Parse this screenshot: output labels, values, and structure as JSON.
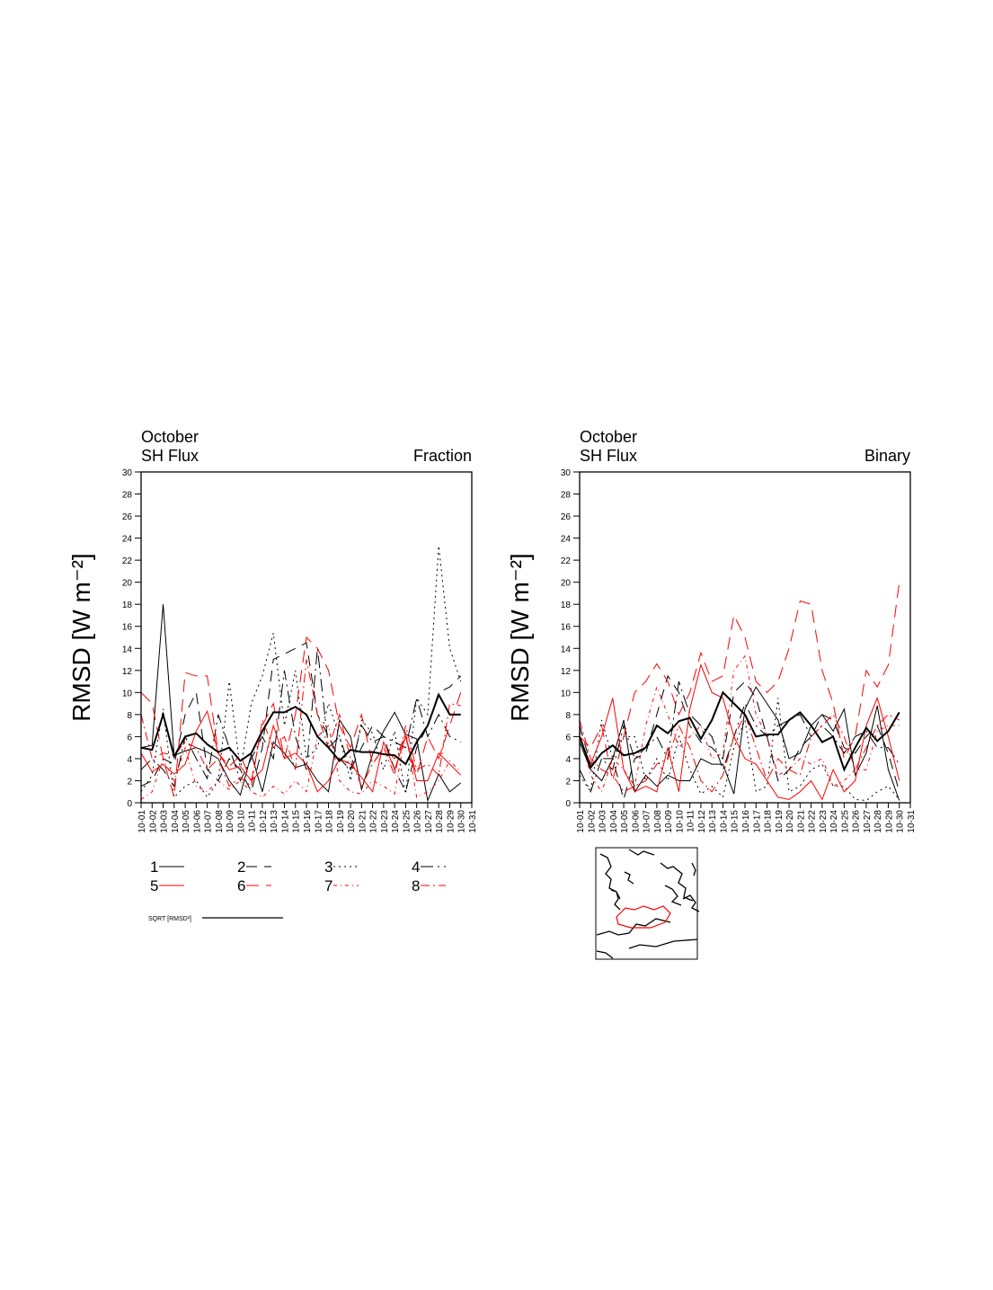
{
  "chart_data": [
    {
      "type": "line",
      "title": "October",
      "subtitle": "SH Flux",
      "right_label": "Fraction",
      "y_label": "RMSD [W m⁻²]",
      "categories": [
        "10-01",
        "10-02",
        "10-03",
        "10-04",
        "10-05",
        "10-06",
        "10-07",
        "10-08",
        "10-09",
        "10-10",
        "10-11",
        "10-12",
        "10-13",
        "10-14",
        "10-15",
        "10-16",
        "10-17",
        "10-18",
        "10-19",
        "10-20",
        "10-21",
        "10-22",
        "10-23",
        "10-24",
        "10-25",
        "10-26",
        "10-27",
        "10-28",
        "10-29",
        "10-30",
        "10-31"
      ],
      "ylim": [
        0,
        30
      ],
      "yticks": [
        0,
        2,
        4,
        6,
        8,
        10,
        12,
        14,
        16,
        18,
        20,
        22,
        24,
        26,
        28,
        30
      ],
      "series": [
        {
          "name": "1",
          "color": "#000000",
          "dash": "none",
          "line_width": 1,
          "values": [
            5,
            5.2,
            18,
            4.3,
            4.7,
            5,
            4.6,
            4,
            2,
            0.7,
            4.4,
            1,
            5.5,
            4.5,
            3.2,
            3.5,
            2,
            1,
            7.5,
            6,
            1.2,
            4.4,
            6.5,
            8.2,
            6.2,
            5.8,
            0.2,
            2.6,
            1,
            1.8,
            null
          ]
        },
        {
          "name": "2",
          "color": "#000000",
          "dash": "12 8",
          "line_width": 1,
          "values": [
            1.5,
            2,
            4,
            3.5,
            8,
            10,
            3,
            2,
            4,
            3,
            1,
            5,
            13,
            13.5,
            14,
            14.5,
            8,
            6,
            4,
            3,
            5,
            7,
            6,
            3,
            1,
            5,
            7,
            10,
            10.5,
            11.5,
            null
          ]
        },
        {
          "name": "3",
          "color": "#000000",
          "dash": "2 4",
          "line_width": 1,
          "values": [
            1,
            2.5,
            8.5,
            0.5,
            1.5,
            2,
            0.5,
            2,
            11,
            3,
            9,
            11.5,
            15.4,
            7,
            12,
            4,
            5,
            9,
            6,
            2,
            7.5,
            6.3,
            3,
            6.5,
            0.8,
            9.5,
            8,
            23.3,
            14,
            11,
            null
          ]
        },
        {
          "name": "4",
          "color": "#000000",
          "dash": "14 5 2 5",
          "line_width": 1,
          "values": [
            3,
            4,
            3,
            1.5,
            6,
            4,
            2.2,
            8,
            5,
            2,
            4,
            6,
            4,
            12,
            6,
            3,
            14,
            5,
            6,
            3,
            7,
            5.5,
            6,
            5.5,
            5,
            9.5,
            6,
            8,
            6,
            5.5,
            null
          ]
        },
        {
          "name": "5",
          "color": "#ff0000",
          "dash": "none",
          "line_width": 1,
          "values": [
            4.5,
            2.8,
            3.5,
            2.6,
            3.5,
            6.5,
            8.3,
            4.5,
            3,
            3.3,
            2,
            3,
            7,
            4,
            4.5,
            3.5,
            1,
            2,
            4,
            3.5,
            2.3,
            1,
            5.5,
            3,
            6,
            2,
            2,
            4.5,
            3.5,
            2.5,
            null
          ]
        },
        {
          "name": "6",
          "color": "#ff0000",
          "dash": "14 8",
          "line_width": 1,
          "values": [
            10,
            9,
            4,
            0.5,
            11.8,
            11.5,
            11.5,
            4.5,
            3.3,
            4.3,
            2,
            7,
            9,
            4,
            8,
            15,
            14,
            12,
            7,
            5,
            8,
            3.5,
            5,
            4,
            6,
            2.5,
            6,
            4,
            7,
            10,
            null
          ]
        },
        {
          "name": "7",
          "color": "#ff0000",
          "dash": "4 4 1 4",
          "line_width": 1,
          "values": [
            0.3,
            1,
            4,
            2,
            5,
            1.5,
            1,
            2,
            1.2,
            2,
            1,
            0.5,
            1.5,
            0.8,
            2,
            1,
            6,
            7,
            2,
            1,
            0.8,
            2,
            1.5,
            0.8,
            6.5,
            0.5,
            1,
            2,
            3.8,
            2.8,
            null
          ]
        },
        {
          "name": "8",
          "color": "#ff0000",
          "dash": "10 4 2 4",
          "line_width": 1,
          "values": [
            8,
            4,
            4.5,
            4.3,
            5.5,
            5,
            3,
            4,
            1.5,
            2.3,
            1.5,
            7.5,
            5,
            6,
            3,
            13,
            8,
            5,
            8,
            4,
            1.5,
            3.5,
            5,
            2.5,
            7,
            3,
            3.5,
            2.5,
            9,
            8.8,
            null
          ]
        },
        {
          "name": "SQRT [RMSD²]",
          "color": "#000000",
          "dash": "none",
          "line_width": 2,
          "values": [
            5,
            4.8,
            8,
            4.2,
            6,
            6.3,
            5.3,
            4.6,
            5,
            3.8,
            4.5,
            6.5,
            8.2,
            8.2,
            8.7,
            8,
            6,
            5,
            3.8,
            4.8,
            4.6,
            4.6,
            4.4,
            4.3,
            3.5,
            5.5,
            7,
            9.8,
            8,
            8,
            null
          ]
        }
      ]
    },
    {
      "type": "line",
      "title": "October",
      "subtitle": "SH Flux",
      "right_label": "Binary",
      "y_label": "RMSD [W m⁻²]",
      "categories": [
        "10-01",
        "10-02",
        "10-03",
        "10-04",
        "10-05",
        "10-06",
        "10-07",
        "10-08",
        "10-09",
        "10-10",
        "10-11",
        "10-12",
        "10-13",
        "10-14",
        "10-15",
        "10-16",
        "10-17",
        "10-18",
        "10-19",
        "10-20",
        "10-21",
        "10-22",
        "10-23",
        "10-24",
        "10-25",
        "10-26",
        "10-27",
        "10-28",
        "10-29",
        "10-30",
        "10-31"
      ],
      "ylim": [
        0,
        30
      ],
      "yticks": [
        0,
        2,
        4,
        6,
        8,
        10,
        12,
        14,
        16,
        18,
        20,
        22,
        24,
        26,
        28,
        30
      ],
      "series": [
        {
          "color": "#000000",
          "dash": "none",
          "line_width": 1,
          "values": [
            5.5,
            3,
            2,
            4,
            7.5,
            1,
            2.5,
            1.5,
            2.5,
            2,
            2,
            4,
            3.5,
            3.5,
            0.8,
            8.5,
            10.5,
            9,
            7.5,
            4,
            4.5,
            7,
            8,
            6.5,
            8.5,
            2.5,
            4.5,
            8.8,
            3,
            0.2,
            null
          ]
        },
        {
          "color": "#000000",
          "dash": "12 8",
          "line_width": 1,
          "values": [
            7,
            3.5,
            4,
            4,
            0.3,
            4,
            4.5,
            8,
            11.5,
            10,
            7,
            5.5,
            5,
            4,
            10,
            11,
            9.5,
            6,
            2,
            3,
            5,
            6,
            8,
            7.5,
            5,
            4.5,
            6,
            7,
            4.5,
            1,
            null
          ]
        },
        {
          "color": "#000000",
          "dash": "2 4",
          "line_width": 1,
          "values": [
            2.5,
            1,
            7.5,
            4,
            6,
            6,
            2,
            4,
            2,
            6,
            3,
            0.8,
            1.5,
            0.5,
            5,
            7.5,
            1,
            1.5,
            9.5,
            1,
            1.5,
            3,
            3.5,
            1.5,
            1.5,
            0.3,
            0.2,
            1,
            1.5,
            0.3,
            null
          ]
        },
        {
          "color": "#000000",
          "dash": "14 5 2 5",
          "line_width": 1,
          "values": [
            3,
            1,
            4,
            3,
            7,
            4,
            5,
            6,
            4,
            11,
            8,
            7,
            6,
            3,
            6,
            9,
            7,
            6,
            7,
            7.5,
            8,
            6,
            7,
            6,
            4.5,
            6,
            6.5,
            5,
            5,
            3.5,
            null
          ]
        },
        {
          "color": "#ff0000",
          "dash": "none",
          "line_width": 1,
          "values": [
            6,
            3.5,
            6,
            9.5,
            3,
            1,
            1.5,
            1,
            5,
            1,
            8.5,
            12.5,
            10,
            9.5,
            6,
            4,
            3.5,
            2,
            0.5,
            0.3,
            1,
            2,
            0.3,
            3,
            1,
            2,
            7,
            9.5,
            6,
            2,
            null
          ]
        },
        {
          "color": "#ff0000",
          "dash": "14 8",
          "line_width": 1,
          "values": [
            6,
            5,
            7,
            2,
            6,
            10,
            11,
            12.6,
            11,
            8,
            10,
            13.6,
            11,
            11.5,
            17,
            15,
            11,
            10,
            11,
            14,
            18.3,
            18,
            12,
            9,
            4,
            6,
            12,
            10.5,
            12.5,
            20,
            null
          ]
        },
        {
          "color": "#ff0000",
          "dash": "4 4 1 4",
          "line_width": 1,
          "values": [
            6.5,
            2.5,
            1,
            4,
            3,
            1.5,
            7,
            10.5,
            8,
            5,
            6,
            7,
            4,
            4.5,
            12,
            13.3,
            8,
            6,
            2.5,
            3,
            4,
            3.5,
            4,
            1.5,
            2,
            3,
            3,
            6.5,
            7,
            7,
            null
          ]
        },
        {
          "color": "#ff0000",
          "dash": "10 4 2 4",
          "line_width": 1,
          "values": [
            7.5,
            4,
            3,
            2.5,
            1,
            1.5,
            2,
            3.5,
            4,
            7,
            5,
            2,
            1,
            2.5,
            6,
            8,
            5,
            2,
            4,
            3,
            2.5,
            6,
            7,
            8,
            6,
            3,
            5,
            7,
            8,
            7.5,
            null
          ]
        },
        {
          "color": "#000000",
          "dash": "none",
          "line_width": 2,
          "values": [
            6,
            3.2,
            4.5,
            5.2,
            4.3,
            4.5,
            5,
            7,
            6.3,
            7.4,
            7.7,
            5.8,
            7.5,
            10,
            9,
            8,
            6,
            6.2,
            6.2,
            7.5,
            8.2,
            7,
            5.5,
            6,
            3,
            5,
            6.8,
            5.6,
            6.5,
            8.2,
            null
          ]
        }
      ]
    }
  ]
}
